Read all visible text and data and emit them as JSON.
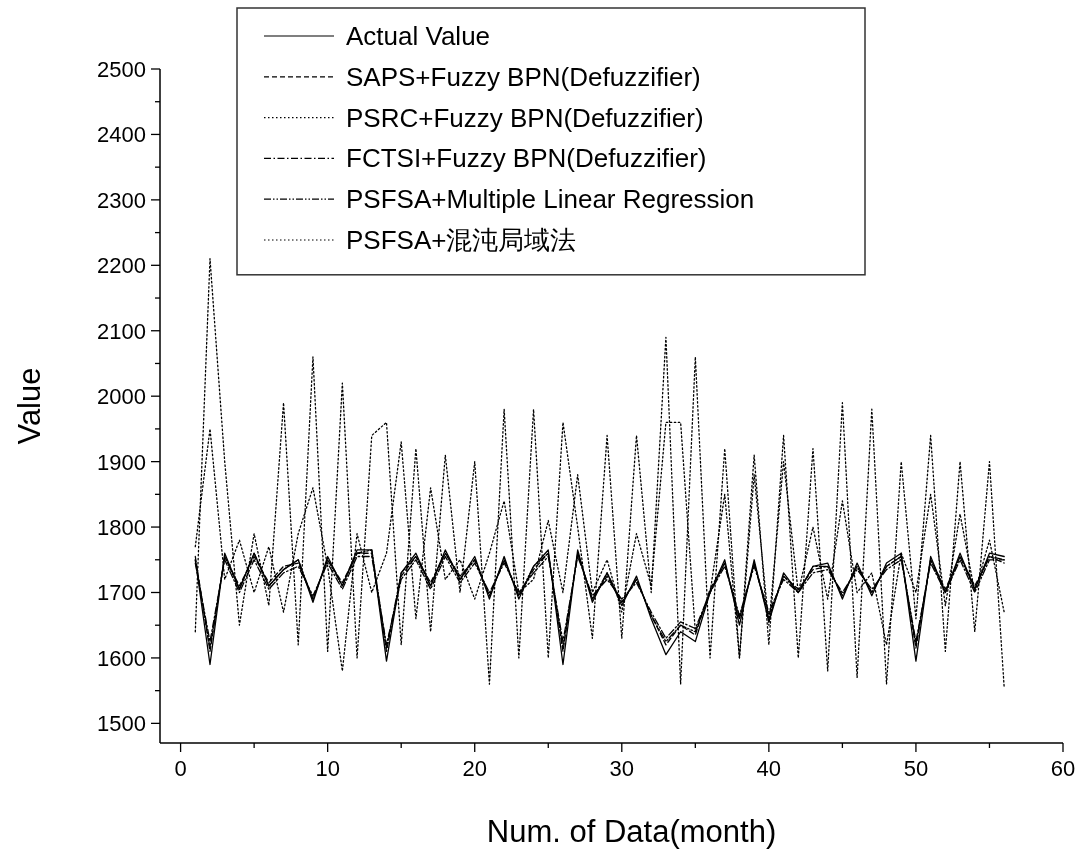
{
  "chart_data": {
    "type": "line",
    "xlabel": "Num. of Data(month)",
    "ylabel": "Value",
    "legend": "top",
    "x": [
      1,
      2,
      3,
      4,
      5,
      6,
      7,
      8,
      9,
      10,
      11,
      12,
      13,
      14,
      15,
      16,
      17,
      18,
      19,
      20,
      21,
      22,
      23,
      24,
      25,
      26,
      27,
      28,
      29,
      30,
      31,
      32,
      33,
      34,
      35,
      36,
      37,
      38,
      39,
      40,
      41,
      42,
      43,
      44,
      45,
      46,
      47,
      48,
      49,
      50,
      51,
      52,
      53,
      54,
      55,
      56
    ],
    "xlim": [
      -1.4,
      60
    ],
    "xticks": [
      0,
      {
        "value": 5,
        "label": null
      },
      10,
      {
        "value": 15,
        "label": null
      },
      20,
      {
        "value": 25,
        "label": null
      },
      30,
      {
        "value": 35,
        "label": null
      },
      40,
      {
        "value": 45,
        "label": null
      },
      50,
      {
        "value": 55,
        "label": null
      },
      60
    ],
    "ylim": [
      1470,
      2500
    ],
    "yticks": [
      1500,
      {
        "value": 1550,
        "label": null
      },
      1600,
      {
        "value": 1650,
        "label": null
      },
      1700,
      {
        "value": 1750,
        "label": null
      },
      1800,
      {
        "value": 1850,
        "label": null
      },
      1900,
      {
        "value": 1950,
        "label": null
      },
      2000,
      {
        "value": 2050,
        "label": null
      },
      2100,
      {
        "value": 2150,
        "label": null
      },
      2200,
      {
        "value": 2250,
        "label": null
      },
      2300,
      {
        "value": 2350,
        "label": null
      },
      2400,
      {
        "value": 2450,
        "label": null
      },
      2500
    ],
    "series": [
      {
        "name": "Actual Value",
        "color": "#000000",
        "line_style": "solid",
        "values": [
          1750,
          1590,
          1760,
          1705,
          1760,
          1710,
          1735,
          1750,
          1685,
          1755,
          1710,
          1765,
          1765,
          1595,
          1730,
          1760,
          1710,
          1765,
          1720,
          1755,
          1690,
          1755,
          1690,
          1740,
          1765,
          1590,
          1765,
          1685,
          1730,
          1680,
          1725,
          1660,
          1605,
          1640,
          1625,
          1700,
          1750,
          1650,
          1750,
          1655,
          1730,
          1700,
          1740,
          1745,
          1690,
          1745,
          1695,
          1745,
          1760,
          1595,
          1755,
          1700,
          1760,
          1705,
          1760,
          1755
        ]
      },
      {
        "name": "SAPS+Fuzzy BPN(Defuzzifier)",
        "color": "#000000",
        "line_style": "dashed",
        "values": [
          1755,
          1610,
          1755,
          1710,
          1755,
          1715,
          1740,
          1745,
          1690,
          1750,
          1715,
          1760,
          1760,
          1610,
          1725,
          1755,
          1715,
          1760,
          1725,
          1750,
          1695,
          1750,
          1695,
          1735,
          1760,
          1610,
          1760,
          1690,
          1725,
          1685,
          1720,
          1665,
          1620,
          1650,
          1635,
          1705,
          1745,
          1660,
          1745,
          1665,
          1725,
          1705,
          1735,
          1740,
          1695,
          1740,
          1700,
          1740,
          1755,
          1615,
          1750,
          1705,
          1755,
          1710,
          1755,
          1745
        ]
      },
      {
        "name": "PSRC+Fuzzy BPN(Defuzzifier)",
        "color": "#000000",
        "line_style": "dotted",
        "values": [
          1770,
          1950,
          1720,
          1780,
          1700,
          1770,
          1670,
          1790,
          1860,
          1740,
          1580,
          1790,
          1700,
          1760,
          1930,
          1660,
          1860,
          1720,
          1750,
          1690,
          1760,
          1840,
          1700,
          1720,
          1810,
          1700,
          1880,
          1700,
          1750,
          1670,
          1790,
          1710,
          1960,
          1960,
          1640,
          1700,
          1850,
          1600,
          1880,
          1650,
          1900,
          1700,
          1800,
          1690,
          1840,
          1700,
          1730,
          1620,
          1760,
          1700,
          1850,
          1680,
          1820,
          1700,
          1780,
          1670
        ]
      },
      {
        "name": "FCTSI+Fuzzy BPN(Defuzzifier)",
        "color": "#000000",
        "line_style": "dashdot",
        "values": [
          1745,
          1625,
          1750,
          1700,
          1750,
          1705,
          1730,
          1740,
          1695,
          1745,
          1705,
          1755,
          1755,
          1620,
          1720,
          1750,
          1705,
          1755,
          1715,
          1745,
          1700,
          1745,
          1700,
          1730,
          1755,
          1625,
          1755,
          1695,
          1720,
          1690,
          1715,
          1670,
          1630,
          1655,
          1645,
          1700,
          1740,
          1665,
          1740,
          1670,
          1720,
          1700,
          1730,
          1735,
          1700,
          1735,
          1705,
          1735,
          1750,
          1625,
          1745,
          1700,
          1750,
          1700,
          1750,
          1750
        ]
      },
      {
        "name": "PSFSA+Multiple Linear Regression",
        "color": "#000000",
        "line_style": "dashdotdot",
        "values": [
          1750,
          1615,
          1755,
          1705,
          1760,
          1710,
          1735,
          1750,
          1690,
          1750,
          1710,
          1760,
          1765,
          1615,
          1730,
          1755,
          1710,
          1760,
          1720,
          1750,
          1695,
          1750,
          1695,
          1740,
          1760,
          1615,
          1760,
          1690,
          1730,
          1685,
          1720,
          1665,
          1625,
          1650,
          1640,
          1700,
          1745,
          1660,
          1745,
          1660,
          1725,
          1700,
          1740,
          1740,
          1695,
          1740,
          1700,
          1740,
          1755,
          1620,
          1750,
          1700,
          1755,
          1705,
          1755,
          1750
        ]
      },
      {
        "name": "PSFSA+混沌局域法",
        "color": "#000000",
        "line_style": "dotted",
        "values": [
          1640,
          2210,
          1900,
          1650,
          1790,
          1680,
          1990,
          1620,
          2060,
          1610,
          2020,
          1600,
          1940,
          1960,
          1620,
          1920,
          1640,
          1910,
          1700,
          1900,
          1560,
          1980,
          1600,
          1980,
          1600,
          1960,
          1800,
          1630,
          1940,
          1630,
          1940,
          1700,
          2090,
          1560,
          2060,
          1600,
          1920,
          1600,
          1910,
          1620,
          1940,
          1600,
          1920,
          1580,
          1990,
          1570,
          1980,
          1560,
          1900,
          1660,
          1940,
          1610,
          1900,
          1640,
          1900,
          1555
        ]
      }
    ]
  }
}
